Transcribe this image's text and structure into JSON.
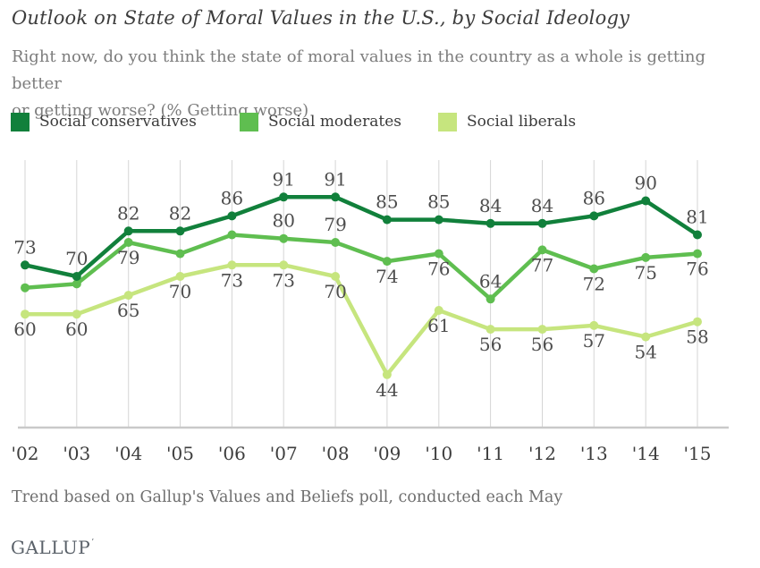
{
  "page": {
    "title": "Outlook on State of Moral Values in the U.S., by Social Ideology",
    "subtitle_lines": [
      "Right now, do you think the state of moral values in the country as a whole is getting better",
      "or getting worse? (% Getting worse)"
    ],
    "footnote": "Trend based on Gallup's Values and Beliefs poll, conducted each May",
    "logo_text": "GALLUP",
    "logo_mark": "’"
  },
  "legend": {
    "items": [
      {
        "label": "Social conservatives",
        "color": "#11803B"
      },
      {
        "label": "Social moderates",
        "color": "#5FBE50"
      },
      {
        "label": "Social liberals",
        "color": "#C6E57E"
      }
    ]
  },
  "chart_data": {
    "type": "line",
    "title": "Outlook on State of Moral Values in the U.S., by Social Ideology",
    "xlabel": "",
    "ylabel": "% Getting worse",
    "x_labels": [
      "'02",
      "'03",
      "'04",
      "'05",
      "'06",
      "'07",
      "'08",
      "'09",
      "'10",
      "'11",
      "'12",
      "'13",
      "'14",
      "'15"
    ],
    "ylim": [
      30,
      101
    ],
    "grid": "vertical",
    "legend_position": "top",
    "gridline_color": "#d5d5d5",
    "axis_color": "#c9c9c9",
    "point_label_color": "#4d4d4d",
    "tick_label_color": "#3d3d3d",
    "series": [
      {
        "name": "Social liberals",
        "color": "#C6E57E",
        "values": [
          60,
          60,
          65,
          70,
          73,
          73,
          70,
          44,
          61,
          56,
          56,
          57,
          54,
          58
        ],
        "point_labels": [
          "60",
          "60",
          "65",
          "70",
          "73",
          "73",
          "70",
          "44",
          "61",
          "56",
          "56",
          "57",
          "54",
          "58"
        ],
        "label_sides": [
          "below",
          "below",
          "below",
          "below",
          "below",
          "below",
          "below",
          "below",
          "below",
          "below",
          "below",
          "below",
          "below",
          "below"
        ]
      },
      {
        "name": "Social moderates",
        "color": "#5FBE50",
        "values": [
          67,
          68,
          79,
          76,
          81,
          80,
          79,
          74,
          76,
          64,
          77,
          72,
          75,
          76
        ],
        "point_labels": [
          "",
          "",
          "79",
          "",
          "",
          "80",
          "79",
          "74",
          "76",
          "64",
          "77",
          "72",
          "75",
          "76"
        ],
        "label_sides": [
          "",
          "",
          "below",
          "",
          "",
          "above",
          "above",
          "below",
          "below",
          "above",
          "below",
          "below",
          "below",
          "below"
        ]
      },
      {
        "name": "Social conservatives",
        "color": "#11803B",
        "values": [
          73,
          70,
          82,
          82,
          86,
          91,
          91,
          85,
          85,
          84,
          84,
          86,
          90,
          81
        ],
        "point_labels": [
          "73",
          "70",
          "82",
          "82",
          "86",
          "91",
          "91",
          "85",
          "85",
          "84",
          "84",
          "86",
          "90",
          "81"
        ],
        "label_sides": [
          "above",
          "above",
          "above",
          "above",
          "above",
          "above",
          "above",
          "above",
          "above",
          "above",
          "above",
          "above",
          "above",
          "above"
        ]
      }
    ]
  }
}
